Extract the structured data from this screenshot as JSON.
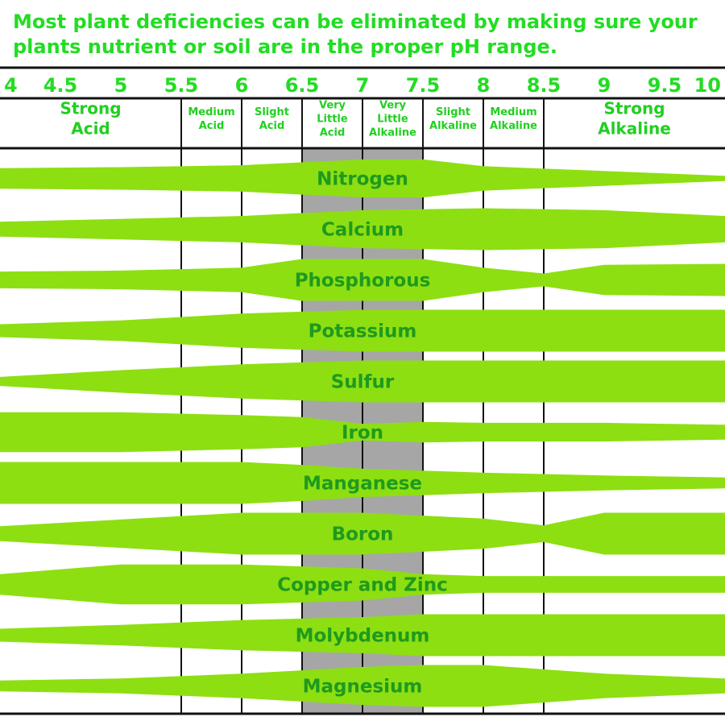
{
  "title_lines": [
    "Most plant deficiencies can be eliminated by making sure your",
    "plants nutrient or soil are in the proper pH range."
  ],
  "colors": {
    "title": "#22dd22",
    "band_fill": "#8ddf12",
    "label_text": "#1e9a1e",
    "zone_text": "#21cf21",
    "optimal_shade": "#a6a6a6",
    "grid": "#111111"
  },
  "chart_data": {
    "type": "area",
    "title": "Most plant deficiencies can be eliminated by making sure your plants nutrient or soil are in the proper pH range.",
    "xlabel": "",
    "ylabel": "",
    "x_ticks": [
      "4",
      "4.5",
      "5",
      "5.5",
      "6",
      "6.5",
      "7",
      "7.5",
      "8",
      "8.5",
      "9",
      "9.5",
      "10"
    ],
    "zones": [
      {
        "label": "Strong\nAcid",
        "range": [
          4.0,
          5.5
        ]
      },
      {
        "label": "Medium\nAcid",
        "range": [
          5.5,
          6.0
        ]
      },
      {
        "label": "Slight\nAcid",
        "range": [
          6.0,
          6.5
        ]
      },
      {
        "label": "Very\nLittle\nAcid",
        "range": [
          6.5,
          7.0
        ]
      },
      {
        "label": "Very\nLittle\nAlkaline",
        "range": [
          7.0,
          7.5
        ]
      },
      {
        "label": "Slight\nAlkaline",
        "range": [
          7.5,
          8.0
        ]
      },
      {
        "label": "Medium\nAlkaline",
        "range": [
          8.0,
          8.5
        ]
      },
      {
        "label": "Strong\nAlkaline",
        "range": [
          8.5,
          10.0
        ]
      }
    ],
    "optimal_range": [
      6.5,
      7.5
    ],
    "availability_scale": "relative nutrient availability (0-1) at each pH",
    "series": [
      {
        "name": "Nitrogen",
        "x": [
          4.0,
          5.0,
          6.0,
          7.0,
          7.5,
          8.0,
          9.0,
          10.0
        ],
        "values": [
          0.45,
          0.5,
          0.6,
          0.9,
          0.9,
          0.55,
          0.3,
          0.05
        ]
      },
      {
        "name": "Calcium",
        "x": [
          4.0,
          5.0,
          6.0,
          7.0,
          8.0,
          9.0,
          10.0
        ],
        "values": [
          0.3,
          0.45,
          0.6,
          0.9,
          1.0,
          0.9,
          0.6
        ]
      },
      {
        "name": "Phosphorous",
        "x": [
          4.0,
          5.0,
          6.0,
          6.5,
          7.5,
          8.0,
          8.5,
          9.0,
          10.0
        ],
        "values": [
          0.35,
          0.4,
          0.55,
          1.0,
          1.0,
          0.55,
          0.25,
          0.7,
          0.75
        ]
      },
      {
        "name": "Potassium",
        "x": [
          4.0,
          5.0,
          6.0,
          7.0,
          8.0,
          9.0,
          10.0
        ],
        "values": [
          0.25,
          0.45,
          0.8,
          1.0,
          1.0,
          1.0,
          1.0
        ]
      },
      {
        "name": "Sulfur",
        "x": [
          4.0,
          5.0,
          6.0,
          7.0,
          8.0,
          9.0,
          10.0
        ],
        "values": [
          0.15,
          0.5,
          0.8,
          1.0,
          1.0,
          1.0,
          1.0
        ]
      },
      {
        "name": "Iron",
        "x": [
          4.0,
          5.0,
          6.0,
          6.5,
          7.0,
          7.5,
          8.0,
          9.0,
          10.0
        ],
        "values": [
          0.95,
          0.95,
          0.8,
          0.7,
          0.35,
          0.45,
          0.4,
          0.4,
          0.3
        ]
      },
      {
        "name": "Manganese",
        "x": [
          4.0,
          5.0,
          6.0,
          6.5,
          7.0,
          7.5,
          8.0,
          9.0,
          10.0
        ],
        "values": [
          1.0,
          1.0,
          1.0,
          0.85,
          0.65,
          0.55,
          0.45,
          0.3,
          0.2
        ]
      },
      {
        "name": "Boron",
        "x": [
          4.0,
          5.0,
          6.0,
          7.0,
          8.0,
          8.5,
          9.0,
          10.0
        ],
        "values": [
          0.3,
          0.65,
          1.0,
          1.0,
          0.7,
          0.35,
          1.0,
          1.0
        ]
      },
      {
        "name": "Copper and Zinc",
        "x": [
          4.0,
          5.0,
          6.0,
          7.0,
          7.5,
          8.0,
          9.0,
          10.0
        ],
        "values": [
          0.45,
          0.95,
          0.95,
          0.75,
          0.45,
          0.35,
          0.35,
          0.35
        ]
      },
      {
        "name": "Molybdenum",
        "x": [
          4.0,
          5.0,
          6.0,
          7.0,
          7.5,
          8.0,
          9.0,
          10.0
        ],
        "values": [
          0.25,
          0.45,
          0.7,
          0.85,
          1.0,
          1.0,
          1.0,
          1.0
        ]
      },
      {
        "name": "Magnesium",
        "x": [
          4.0,
          5.0,
          6.0,
          7.0,
          7.5,
          8.0,
          9.0,
          10.0
        ],
        "values": [
          0.2,
          0.3,
          0.55,
          0.9,
          1.0,
          1.0,
          0.55,
          0.3
        ]
      }
    ],
    "grid": true,
    "legend": "none"
  }
}
